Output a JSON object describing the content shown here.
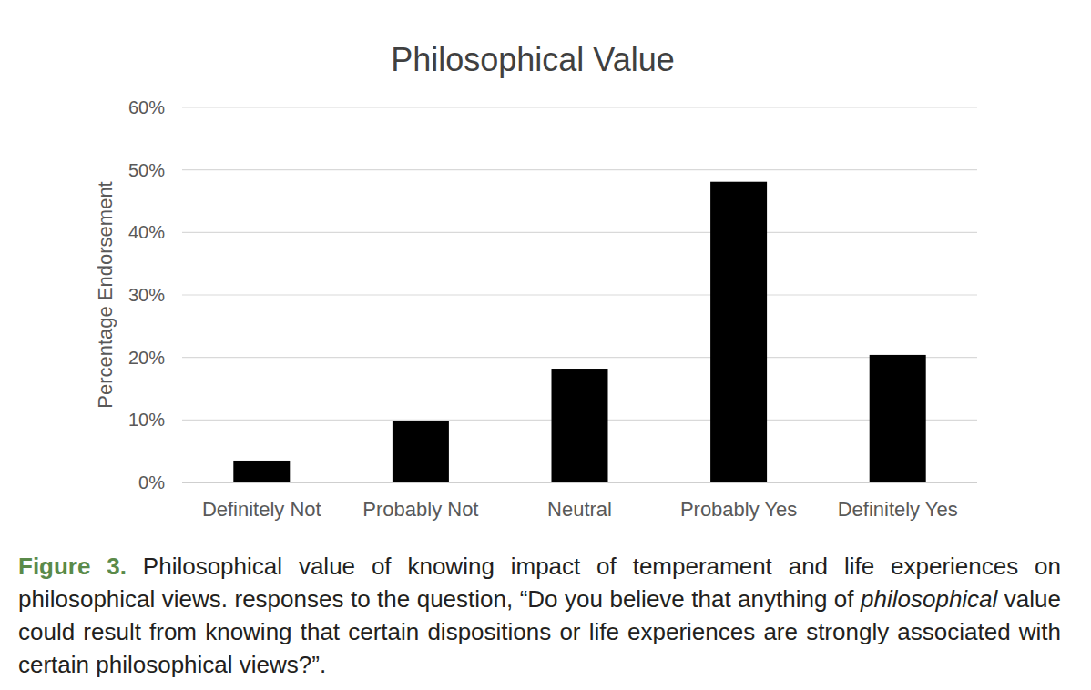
{
  "chart_data": {
    "type": "bar",
    "title": "Philosophical Value",
    "y_label": "Percentage Endorsement",
    "categories": [
      "Definitely Not",
      "Probably Not",
      "Neutral",
      "Probably Yes",
      "Definitely Yes"
    ],
    "values": [
      3.5,
      9.9,
      18.2,
      48.1,
      20.4
    ],
    "color": "#000000",
    "ylim": [
      0,
      60
    ],
    "yticks": [
      {
        "value": 0,
        "label": "0%"
      },
      {
        "value": 10,
        "label": "10%"
      },
      {
        "value": 20,
        "label": "20%"
      },
      {
        "value": 30,
        "label": "30%"
      },
      {
        "value": 40,
        "label": "40%"
      },
      {
        "value": 50,
        "label": "50%"
      },
      {
        "value": 60,
        "label": "60%"
      }
    ],
    "grid": true,
    "caption": [
      "Figure 3.",
      "Philosophical value of knowing impact of temperament and life experiences on philosophical views. responses to the question, “Do you believe that anything of ",
      "philosophical",
      " value could result from knowing that certain dispositions or life experiences are strongly associated with certain philosophical views?”."
    ]
  }
}
